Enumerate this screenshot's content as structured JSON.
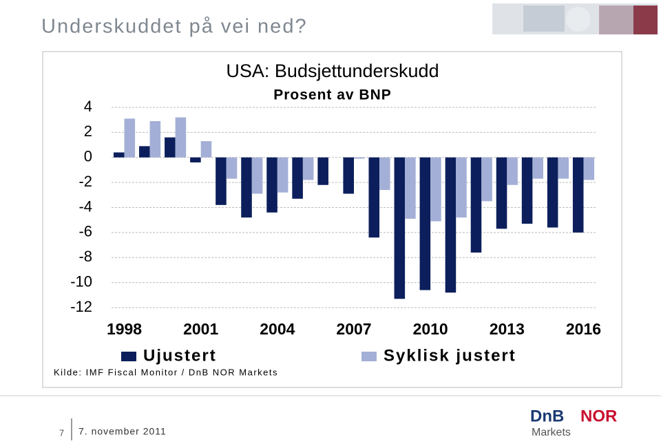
{
  "header": {
    "title": "Underskuddet på vei ned?"
  },
  "chart_data": {
    "type": "bar",
    "title": "USA: Budsjettunderskudd",
    "subtitle": "Prosent av BNP",
    "source": "Kilde: IMF Fiscal Monitor / DnB NOR Markets",
    "categories": [
      "1998",
      null,
      null,
      "2001",
      null,
      null,
      "2004",
      null,
      null,
      "2007",
      null,
      null,
      "2010",
      null,
      null,
      "2013",
      null,
      null,
      "2016"
    ],
    "series": [
      {
        "name": "Ujustert",
        "color": "#0c1f5c",
        "values": [
          0.4,
          0.9,
          1.6,
          -0.4,
          -3.8,
          -4.8,
          -4.4,
          -3.3,
          -2.2,
          -2.9,
          -6.4,
          -11.3,
          -10.6,
          -10.8,
          -7.6,
          -5.7,
          -5.3,
          -5.6,
          -6.0
        ]
      },
      {
        "name": "Syklisk justert",
        "color": "#a3afd6",
        "values": [
          3.1,
          2.9,
          3.2,
          1.3,
          -1.7,
          -2.9,
          -2.8,
          -1.8,
          0,
          -0.1,
          -2.6,
          -4.9,
          -5.1,
          -4.8,
          -3.5,
          -2.2,
          -1.7,
          -1.7,
          -1.8
        ]
      }
    ],
    "ylim": [
      -12,
      4
    ],
    "yticks": [
      4,
      2,
      0,
      -2,
      -4,
      -6,
      -8,
      -10,
      -12
    ],
    "grid": true,
    "legend": "bottom"
  },
  "footer": {
    "page": "7",
    "date": "7. november 2011",
    "logo": [
      "DnB",
      "NOR",
      "Markets"
    ]
  }
}
